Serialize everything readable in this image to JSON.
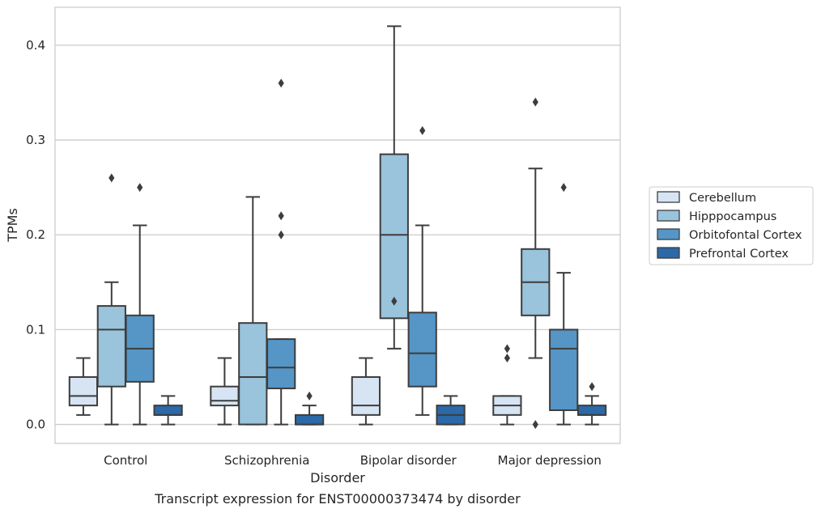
{
  "chart_data": {
    "type": "boxplot",
    "caption": "Transcript expression for ENST00000373474 by disorder",
    "xlabel": "Disorder",
    "ylabel": "TPMs",
    "ylim": [
      -0.02,
      0.44
    ],
    "yticks": [
      0.0,
      0.1,
      0.2,
      0.3,
      0.4
    ],
    "ytick_labels": [
      "0.0",
      "0.1",
      "0.2",
      "0.3",
      "0.4"
    ],
    "grid": "horizontal",
    "legend_position": "right",
    "categories": [
      "Control",
      "Schizophrenia",
      "Bipolar disorder",
      "Major depression"
    ],
    "series": [
      {
        "name": "Cerebellum",
        "color": "#d6e4f3",
        "boxes": [
          {
            "whislo": 0.01,
            "q1": 0.02,
            "med": 0.03,
            "q3": 0.05,
            "whishi": 0.07,
            "fliers": []
          },
          {
            "whislo": 0.0,
            "q1": 0.02,
            "med": 0.025,
            "q3": 0.04,
            "whishi": 0.07,
            "fliers": []
          },
          {
            "whislo": 0.0,
            "q1": 0.01,
            "med": 0.02,
            "q3": 0.05,
            "whishi": 0.07,
            "fliers": []
          },
          {
            "whislo": 0.0,
            "q1": 0.01,
            "med": 0.02,
            "q3": 0.03,
            "whishi": 0.03,
            "fliers": [
              0.07,
              0.08
            ]
          }
        ]
      },
      {
        "name": "Hipppocampus",
        "color": "#9ac3dc",
        "boxes": [
          {
            "whislo": 0.0,
            "q1": 0.04,
            "med": 0.1,
            "q3": 0.125,
            "whishi": 0.15,
            "fliers": [
              0.26
            ]
          },
          {
            "whislo": 0.0,
            "q1": 0.0,
            "med": 0.05,
            "q3": 0.107,
            "whishi": 0.24,
            "fliers": []
          },
          {
            "whislo": 0.08,
            "q1": 0.112,
            "med": 0.2,
            "q3": 0.285,
            "whishi": 0.42,
            "fliers": [
              0.13
            ]
          },
          {
            "whislo": 0.07,
            "q1": 0.115,
            "med": 0.15,
            "q3": 0.185,
            "whishi": 0.27,
            "fliers": [
              0.0,
              0.34
            ]
          }
        ]
      },
      {
        "name": "Orbitofontal Cortex",
        "color": "#5596c6",
        "boxes": [
          {
            "whislo": 0.0,
            "q1": 0.045,
            "med": 0.08,
            "q3": 0.115,
            "whishi": 0.21,
            "fliers": [
              0.25
            ]
          },
          {
            "whislo": 0.0,
            "q1": 0.038,
            "med": 0.06,
            "q3": 0.09,
            "whishi": 0.09,
            "fliers": [
              0.2,
              0.22,
              0.36
            ]
          },
          {
            "whislo": 0.01,
            "q1": 0.04,
            "med": 0.075,
            "q3": 0.118,
            "whishi": 0.21,
            "fliers": [
              0.31
            ]
          },
          {
            "whislo": 0.0,
            "q1": 0.015,
            "med": 0.08,
            "q3": 0.1,
            "whishi": 0.16,
            "fliers": [
              0.25
            ]
          }
        ]
      },
      {
        "name": "Prefrontal Cortex",
        "color": "#2b69a8",
        "boxes": [
          {
            "whislo": 0.0,
            "q1": 0.01,
            "med": 0.01,
            "q3": 0.02,
            "whishi": 0.03,
            "fliers": []
          },
          {
            "whislo": 0.0,
            "q1": 0.0,
            "med": 0.0,
            "q3": 0.01,
            "whishi": 0.02,
            "fliers": [
              0.03
            ]
          },
          {
            "whislo": 0.0,
            "q1": 0.0,
            "med": 0.01,
            "q3": 0.02,
            "whishi": 0.03,
            "fliers": []
          },
          {
            "whislo": 0.0,
            "q1": 0.01,
            "med": 0.01,
            "q3": 0.02,
            "whishi": 0.03,
            "fliers": [
              0.04
            ]
          }
        ]
      }
    ]
  }
}
